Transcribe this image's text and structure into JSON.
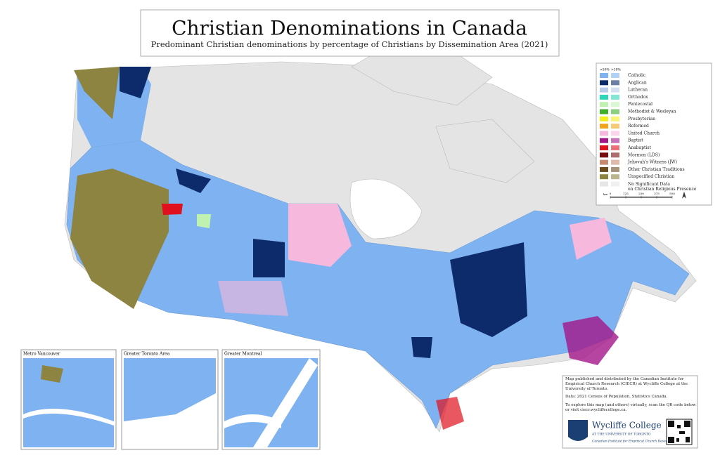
{
  "header": {
    "title": "Christian Denominations in Canada",
    "subtitle": "Predominant Christian denominations by percentage of Christians by Dissemination Area (2021)"
  },
  "legend": {
    "columns": [
      ">50%",
      ">10%"
    ],
    "items": [
      {
        "label": "Catholic",
        "color": "#7fb2f0"
      },
      {
        "label": "Anglican",
        "color": "#0d2a6b"
      },
      {
        "label": "Lutheran",
        "color": "#b7cbe8"
      },
      {
        "label": "Orthodox",
        "color": "#2ed6b8"
      },
      {
        "label": "Pentecostal",
        "color": "#bff2b0"
      },
      {
        "label": "Methodist & Wesleyan",
        "color": "#3fae2a"
      },
      {
        "label": "Presbyterian",
        "color": "#f3ef1c"
      },
      {
        "label": "Reformed",
        "color": "#f2a51a"
      },
      {
        "label": "United Church",
        "color": "#f6b8dc"
      },
      {
        "label": "Baptist",
        "color": "#a3168a"
      },
      {
        "label": "Anabaptist",
        "color": "#e0101e"
      },
      {
        "label": "Mormon (LDS)",
        "color": "#7a0c0c"
      },
      {
        "label": "Jehovah's Witness (JW)",
        "color": "#c98a72"
      },
      {
        "label": "Other Christian Traditions",
        "color": "#6b4a1c"
      },
      {
        "label": "Unspecified Christian",
        "color": "#8c8440"
      },
      {
        "label": "No Significant Data on Christian Religious Presence",
        "color": "#e6e6e6"
      }
    ],
    "scale": {
      "unit": "km",
      "ticks": [
        "0",
        "125",
        "250",
        "375",
        "500"
      ]
    }
  },
  "insets": [
    "Metro Vancouver",
    "Greater Toronto Area",
    "Greater Montreal"
  ],
  "info": {
    "published": "Map published and distributed by the Canadian Institute for Empirical Church Research (CIECR) at Wycliffe College at the University of Toronto.",
    "data": "Data: 2021 Census of Population, Statistics Canada.",
    "explore": "To explore this map (and others) virtually, scan the QR code below or visit ciecr.wycliffecollege.ca.",
    "logo_name": "Wycliffe College",
    "logo_sub": "AT THE UNIVERSITY OF TORONTO",
    "logo_institute": "Canadian Institute for Empirical Church Research"
  }
}
